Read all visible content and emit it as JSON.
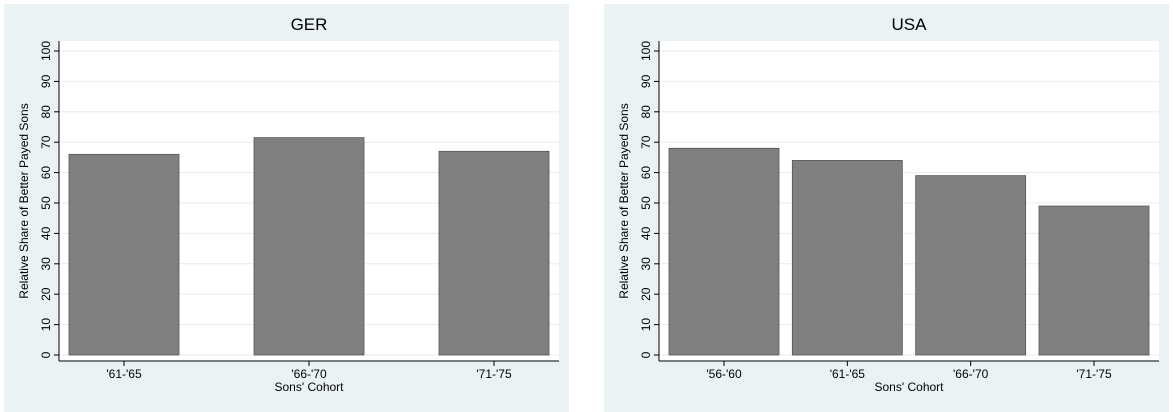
{
  "chart_data": [
    {
      "type": "bar",
      "title": "GER",
      "xlabel": "Sons' Cohort",
      "ylabel": "Relative Share of Better Payed Sons",
      "categories": [
        "'61-'65",
        "'66-'70",
        "'71-'75"
      ],
      "values": [
        66,
        71.5,
        67
      ],
      "ylim": [
        0,
        100
      ],
      "yticks": [
        0,
        10,
        20,
        30,
        40,
        50,
        60,
        70,
        80,
        90,
        100
      ],
      "grid": true,
      "bar_color": "#808080"
    },
    {
      "type": "bar",
      "title": "USA",
      "xlabel": "Sons' Cohort",
      "ylabel": "Relative Share of Better Payed Sons",
      "categories": [
        "'56-'60",
        "'61-'65",
        "'66-'70",
        "'71-'75"
      ],
      "values": [
        68,
        64,
        59,
        49
      ],
      "ylim": [
        0,
        100
      ],
      "yticks": [
        0,
        10,
        20,
        30,
        40,
        50,
        60,
        70,
        80,
        90,
        100
      ],
      "grid": true,
      "bar_color": "#808080"
    }
  ]
}
